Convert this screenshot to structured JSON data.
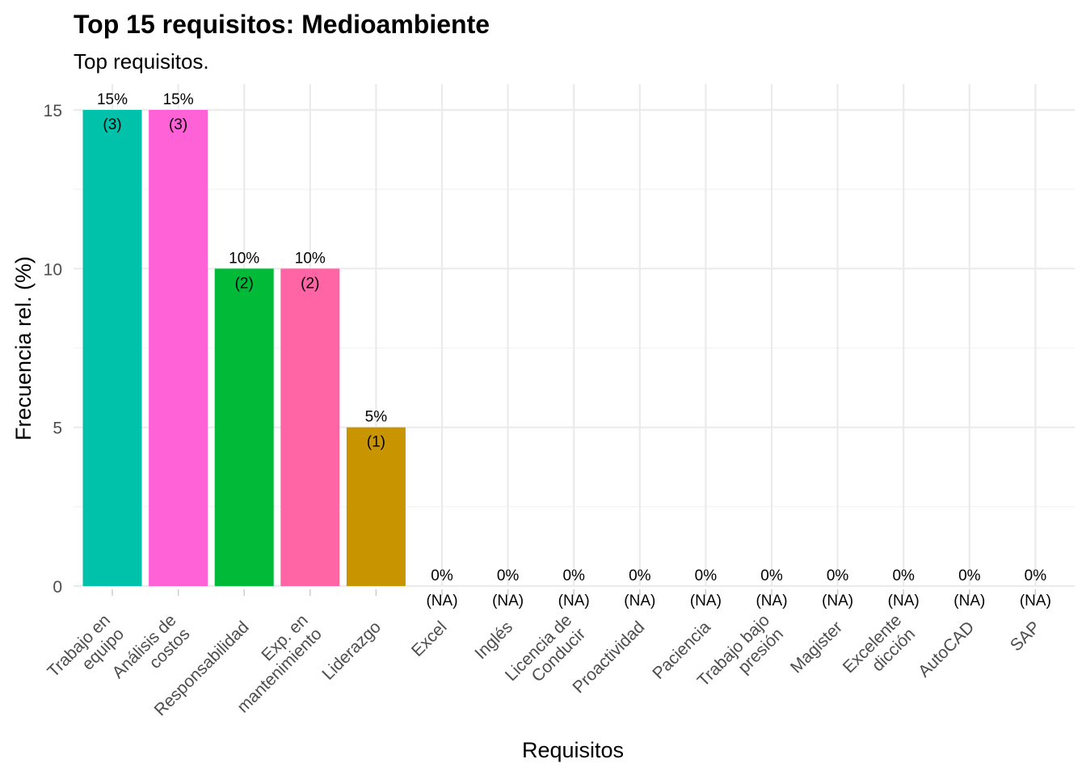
{
  "chart_data": {
    "type": "bar",
    "title": "Top 15 requisitos: Medioambiente",
    "subtitle": "Top requisitos.",
    "xlabel": "Requisitos",
    "ylabel": "Frecuencia rel. (%)",
    "ylim": [
      0,
      15
    ],
    "yticks": [
      "0",
      "5",
      "10",
      "15"
    ],
    "grid": true,
    "legend": "none",
    "categories": [
      [
        "Trabajo en",
        "equipo"
      ],
      [
        "Análisis de",
        "costos"
      ],
      [
        "Responsabilidad"
      ],
      [
        "Exp. en",
        "mantenimiento"
      ],
      [
        "Liderazgo"
      ],
      [
        "Excel"
      ],
      [
        "Inglés"
      ],
      [
        "Licencia de",
        "Conducir"
      ],
      [
        "Proactividad"
      ],
      [
        "Paciencia"
      ],
      [
        "Trabajo bajo",
        "presión"
      ],
      [
        "Magister"
      ],
      [
        "Excelente",
        "dicción"
      ],
      [
        "AutoCAD"
      ],
      [
        "SAP"
      ]
    ],
    "values": [
      15,
      15,
      10,
      10,
      5,
      0,
      0,
      0,
      0,
      0,
      0,
      0,
      0,
      0,
      0
    ],
    "pct_labels": [
      "15%",
      "15%",
      "10%",
      "10%",
      "5%",
      "0%",
      "0%",
      "0%",
      "0%",
      "0%",
      "0%",
      "0%",
      "0%",
      "0%",
      "0%"
    ],
    "count_labels": [
      "(3)",
      "(3)",
      "(2)",
      "(2)",
      "(1)",
      "(NA)",
      "(NA)",
      "(NA)",
      "(NA)",
      "(NA)",
      "(NA)",
      "(NA)",
      "(NA)",
      "(NA)",
      "(NA)"
    ],
    "colors": [
      "#00C1AA",
      "#FF61D7",
      "#00BA38",
      "#FF65A5",
      "#C89500",
      "#FFFFFF",
      "#FFFFFF",
      "#FFFFFF",
      "#FFFFFF",
      "#FFFFFF",
      "#FFFFFF",
      "#FFFFFF",
      "#FFFFFF",
      "#FFFFFF",
      "#FFFFFF"
    ]
  }
}
